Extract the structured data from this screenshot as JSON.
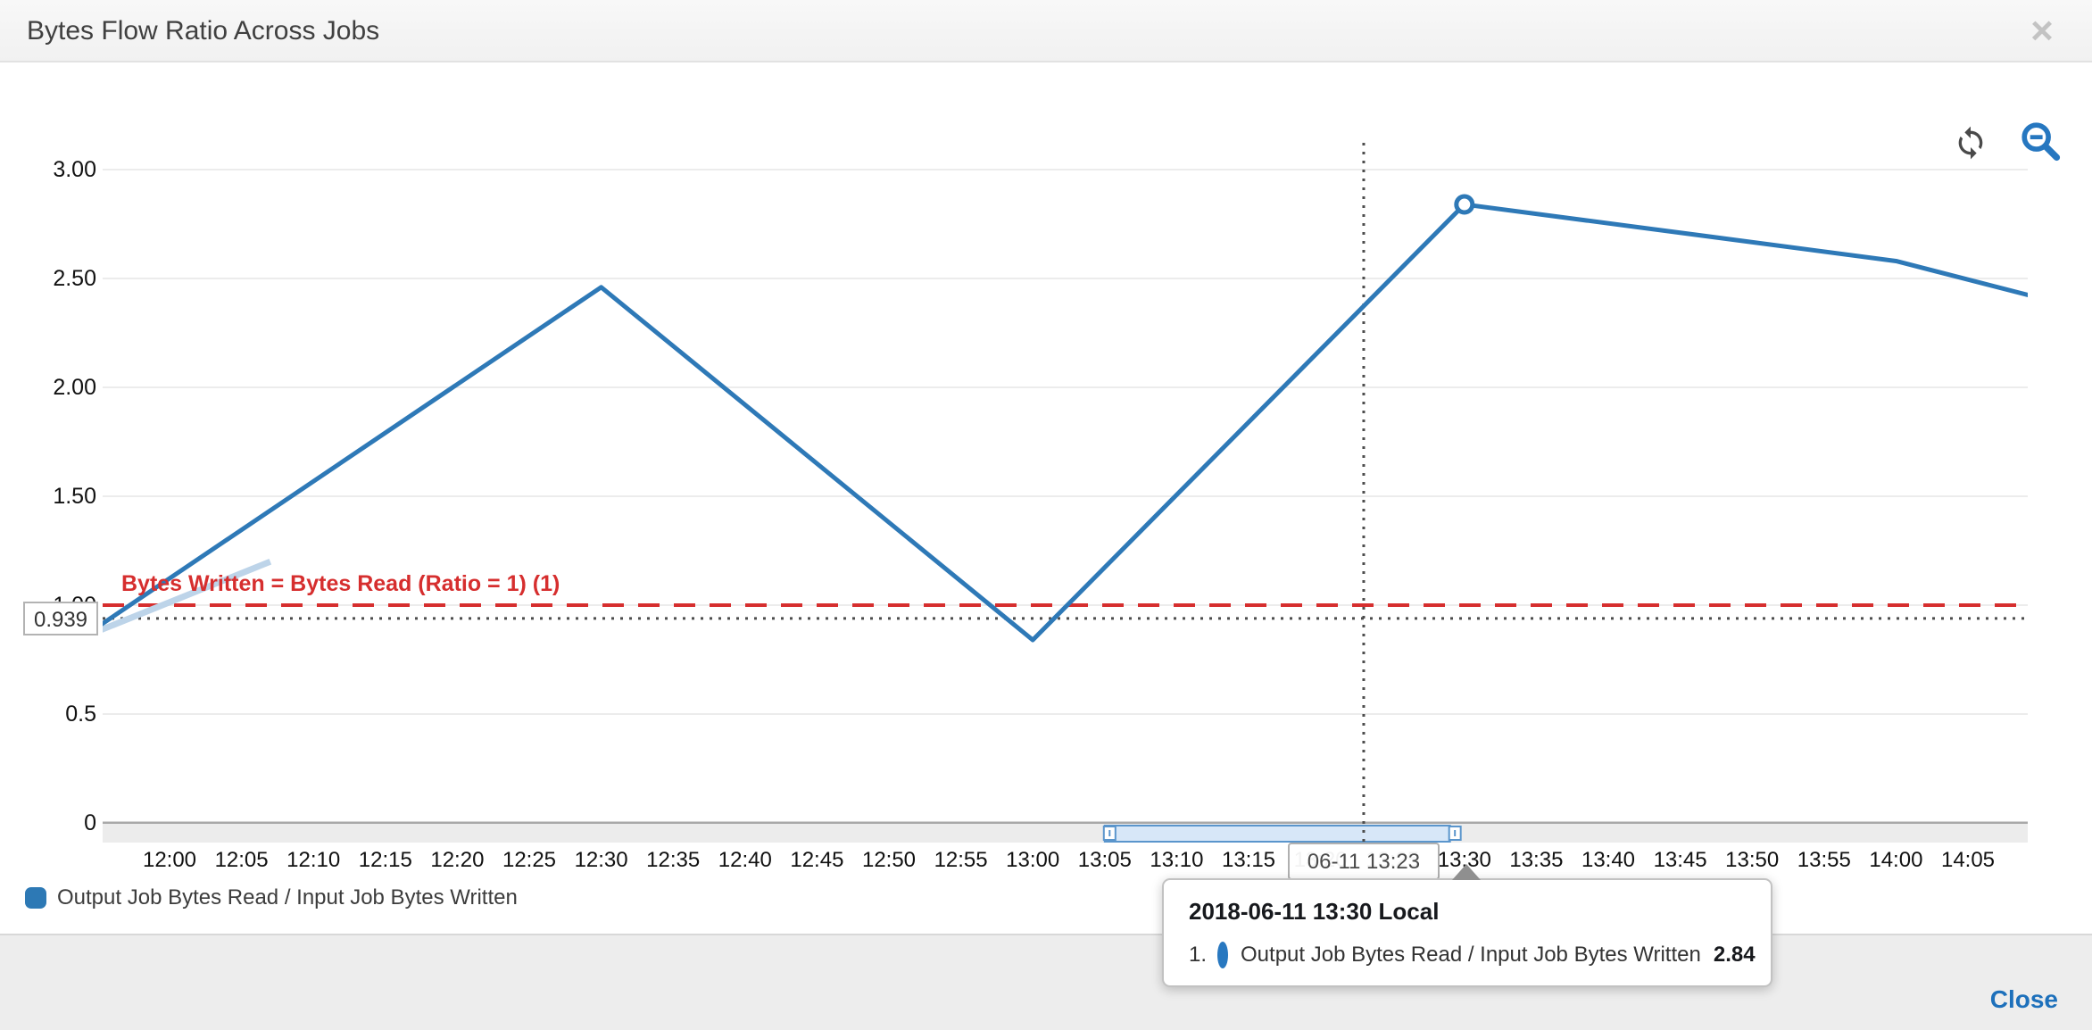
{
  "header": {
    "title": "Bytes Flow Ratio Across Jobs",
    "close_icon": "×"
  },
  "toolbar": {
    "refresh_icon": "refresh-circular-arrows",
    "zoom_out_icon": "magnifier-minus",
    "refresh_color": "#4a4a4a",
    "zoom_out_color": "#2677c0"
  },
  "footer": {
    "close_label": "Close"
  },
  "legend": {
    "items": [
      {
        "label": "Output Job Bytes Read / Input Job Bytes Written",
        "color": "#2d79b5"
      }
    ]
  },
  "tooltip": {
    "title": "2018-06-11 13:30 Local",
    "anchor_time": "13:30",
    "rows": [
      {
        "index": "1.",
        "label": "Output Job Bytes Read / Input Job Bytes Written",
        "value": "2.84",
        "marker_color": "#2878c0"
      }
    ]
  },
  "cursor": {
    "x_label": "06-11 13:23",
    "x_time": "13:23",
    "y_label": "0.939",
    "y_value": 0.939
  },
  "brush": {
    "from": "13:05",
    "to": "13:29",
    "fill": "#d7e7f8",
    "border": "#5a95cc"
  },
  "chart_data": {
    "type": "line",
    "title": "Bytes Flow Ratio Across Jobs",
    "xlabel": "",
    "ylabel": "",
    "timezone_note": "Local",
    "grid": true,
    "legend_position": "bottom-left",
    "ylim": [
      0,
      3
    ],
    "xlim": [
      "11:55",
      "14:10"
    ],
    "y_ticks": [
      {
        "label": "3.00",
        "value": 3.0
      },
      {
        "label": "2.50",
        "value": 2.5
      },
      {
        "label": "2.00",
        "value": 2.0
      },
      {
        "label": "1.50",
        "value": 1.5
      },
      {
        "label": "1.00",
        "value": 1.0
      },
      {
        "label": "0.5",
        "value": 0.5
      },
      {
        "label": "0",
        "value": 0.0
      }
    ],
    "x_ticks": [
      "12:00",
      "12:05",
      "12:10",
      "12:15",
      "12:20",
      "12:25",
      "12:30",
      "12:35",
      "12:40",
      "12:45",
      "12:50",
      "12:55",
      "13:00",
      "13:05",
      "13:10",
      "13:15",
      "13:20",
      "13:25",
      "13:30",
      "13:35",
      "13:40",
      "13:45",
      "13:50",
      "13:55",
      "14:00",
      "14:05"
    ],
    "series": [
      {
        "name": "Output Job Bytes Read / Input Job Bytes Written",
        "color": "#2e79b7",
        "points": [
          {
            "time": "11:55",
            "value": 0.9
          },
          {
            "time": "12:30",
            "value": 2.46
          },
          {
            "time": "13:00",
            "value": 0.84
          },
          {
            "time": "13:30",
            "value": 2.84,
            "marker": true
          },
          {
            "time": "14:00",
            "value": 2.58
          },
          {
            "time": "14:10",
            "value": 2.41
          }
        ]
      }
    ],
    "faint_segment": {
      "color": "#bdd4e9",
      "points": [
        {
          "time": "11:55",
          "value": 0.88
        },
        {
          "time": "12:07",
          "value": 1.2
        }
      ]
    },
    "annotation": {
      "label": "Bytes Written = Bytes Read (Ratio = 1) (1)",
      "value": 1.0,
      "color": "#d62e2e"
    }
  }
}
